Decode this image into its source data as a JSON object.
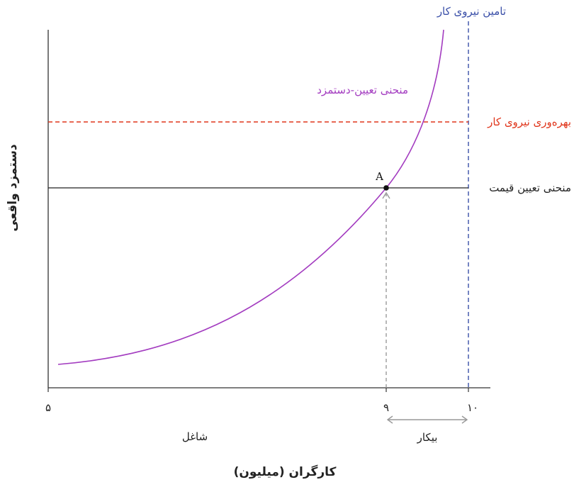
{
  "chart_data": {
    "type": "line",
    "title": "",
    "xlabel": "کارگران (میلیون)",
    "ylabel": "دستمزد واقعی",
    "xlim": [
      5,
      10.3
    ],
    "x_ticks": [
      {
        "value": 5,
        "label": "۵"
      },
      {
        "value": 9,
        "label": "۹"
      },
      {
        "value": 10,
        "label": "۱۰"
      }
    ],
    "y_ticks": [],
    "grid": false,
    "series": [
      {
        "name": "منحنی تعیین-دستمزد",
        "color": "#a33cc0",
        "style": "solid"
      }
    ],
    "vertical_lines": [
      {
        "x": 10,
        "label": "تامین نیروی کار",
        "color": "#3a4fa8",
        "style": "dashed"
      }
    ],
    "horizontal_lines": [
      {
        "label": "بهره‌وری نیروی کار",
        "color": "#e0361c",
        "style": "dashed"
      },
      {
        "label": "منحنی تعیین قیمت",
        "color": "#222222",
        "style": "solid"
      }
    ],
    "point": {
      "label": "A",
      "x": 9
    },
    "regions": [
      {
        "label": "شاغل",
        "from": 5,
        "to": 9
      },
      {
        "label": "بیکار",
        "from": 9,
        "to": 10
      }
    ]
  }
}
